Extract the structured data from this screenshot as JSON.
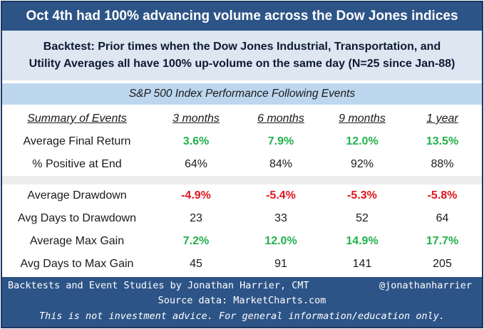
{
  "title": "Oct 4th had 100% advancing volume across the Dow Jones indices",
  "backtest": {
    "line1": "Backtest:  Prior times when the Dow Jones Industrial, Transportation, and",
    "line2": "Utility Averages all have 100% up-volume on the same day (N=25 since Jan-88)"
  },
  "section_title": "S&P 500 Index Performance Following Events",
  "table": {
    "header": [
      "Summary of Events",
      "3 months",
      "6 months",
      "9 months",
      "1 year"
    ],
    "rows": [
      {
        "label": "Average Final Return",
        "values": [
          "3.6%",
          "7.9%",
          "12.0%",
          "13.5%"
        ],
        "style": "positive"
      },
      {
        "label": "% Positive at End",
        "values": [
          "64%",
          "84%",
          "92%",
          "88%"
        ],
        "style": "plain"
      },
      {
        "label": "Average Drawdown",
        "values": [
          "-4.9%",
          "-5.4%",
          "-5.3%",
          "-5.8%"
        ],
        "style": "negative"
      },
      {
        "label": "Avg Days to Drawdown",
        "values": [
          "23",
          "33",
          "52",
          "64"
        ],
        "style": "plain"
      },
      {
        "label": "Average Max Gain",
        "values": [
          "7.2%",
          "12.0%",
          "14.9%",
          "17.7%"
        ],
        "style": "positive"
      },
      {
        "label": "Avg Days to Max Gain",
        "values": [
          "45",
          "91",
          "141",
          "205"
        ],
        "style": "plain"
      }
    ]
  },
  "footer": {
    "credit": "Backtests and Event Studies by Jonathan Harrier, CMT",
    "handle": "@jonathanharrier",
    "source": "Source data: MarketCharts.com",
    "disclaimer": "This is not investment advice. For general information/education only."
  },
  "colors": {
    "header_bg": "#2d5487",
    "backtest_bg": "#dde6f1",
    "subheader_bg": "#bdd7ee",
    "positive": "#22b14c",
    "negative": "#e0161e"
  }
}
